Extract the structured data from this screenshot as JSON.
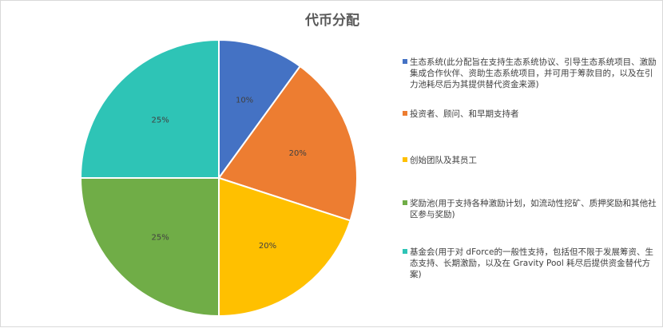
{
  "chart_data": {
    "type": "pie",
    "title": "代币分配",
    "legend_position": "right",
    "slices": [
      {
        "label": "生态系统(此分配旨在支持生态系统协议、引导生态系统项目、激励集成合作伙伴、资助生态系统项目，并可用于筹款目的，以及在引力池耗尽后为其提供替代资金来源)",
        "value": 10,
        "value_label": "10%",
        "color": "#4472C4"
      },
      {
        "label": "投资者、顾问、和早期支持者",
        "value": 20,
        "value_label": "20%",
        "color": "#ED7D31"
      },
      {
        "label": "创始团队及其员工",
        "value": 20,
        "value_label": "20%",
        "color": "#FFC000"
      },
      {
        "label": "奖励池(用于支持各种激励计划，如流动性挖矿、质押奖励和其他社区参与奖励)",
        "value": 25,
        "value_label": "25%",
        "color": "#70AD47"
      },
      {
        "label": "基金会(用于对 dForce的一般性支持，包括但不限于发展筹资、生态支持、长期激励，以及在 Gravity Pool 耗尽后提供资金替代方案)",
        "value": 25,
        "value_label": "25%",
        "color": "#2EC4B6"
      }
    ]
  }
}
